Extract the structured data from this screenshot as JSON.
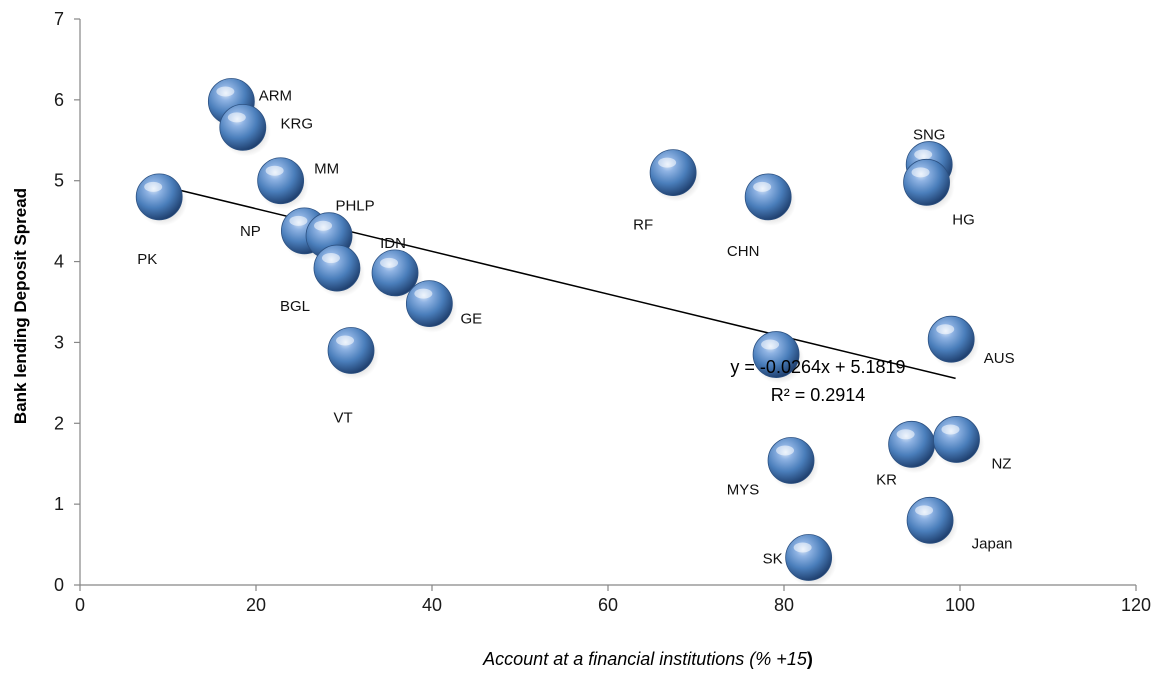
{
  "chart_data": {
    "type": "scatter",
    "title": "",
    "xlabel": "Account at a financial institutions (% +15",
    "xlabel_suffix": ")",
    "ylabel": "Bank lending Deposit Spread",
    "xlim": [
      0,
      120
    ],
    "ylim": [
      0,
      7
    ],
    "x_ticks": [
      "0",
      "20",
      "40",
      "60",
      "80",
      "100",
      "120"
    ],
    "y_ticks": [
      "0",
      "1",
      "2",
      "3",
      "4",
      "5",
      "6",
      "7"
    ],
    "grid": false,
    "legend": "none",
    "marker_color": "#4a7ebb",
    "points": [
      {
        "label": "PK",
        "x": 9,
        "y": 4.8
      },
      {
        "label": "ARM",
        "x": 17.2,
        "y": 5.98
      },
      {
        "label": "KRG",
        "x": 18.5,
        "y": 5.66
      },
      {
        "label": "MM",
        "x": 22.8,
        "y": 5.0
      },
      {
        "label": "NP",
        "x": 25.5,
        "y": 4.38
      },
      {
        "label": "PHLP",
        "x": 28.3,
        "y": 4.32
      },
      {
        "label": "BGL",
        "x": 29.2,
        "y": 3.92
      },
      {
        "label": "IDN",
        "x": 35.8,
        "y": 3.86
      },
      {
        "label": "GE",
        "x": 39.7,
        "y": 3.48
      },
      {
        "label": "VT",
        "x": 30.8,
        "y": 2.9
      },
      {
        "label": "RF",
        "x": 67.4,
        "y": 5.1
      },
      {
        "label": "CHN",
        "x": 78.2,
        "y": 4.8
      },
      {
        "label": "SNG",
        "x": 96.5,
        "y": 5.2
      },
      {
        "label": "HG",
        "x": 96.2,
        "y": 4.98
      },
      {
        "label": "AUS",
        "x": 99.0,
        "y": 3.04
      },
      {
        "label": "",
        "x": 79.1,
        "y": 2.85
      },
      {
        "label": "MYS",
        "x": 80.8,
        "y": 1.54
      },
      {
        "label": "KR",
        "x": 94.5,
        "y": 1.74
      },
      {
        "label": "NZ",
        "x": 99.6,
        "y": 1.8
      },
      {
        "label": "Japan",
        "x": 96.6,
        "y": 0.8
      },
      {
        "label": "SK",
        "x": 82.8,
        "y": 0.34
      }
    ],
    "trendline": {
      "slope": -0.0264,
      "intercept": 5.1819,
      "x_range": [
        9,
        99.5
      ],
      "equation": "y = -0.0264x + 5.1819",
      "r_squared": "R² = 0.2914"
    }
  }
}
